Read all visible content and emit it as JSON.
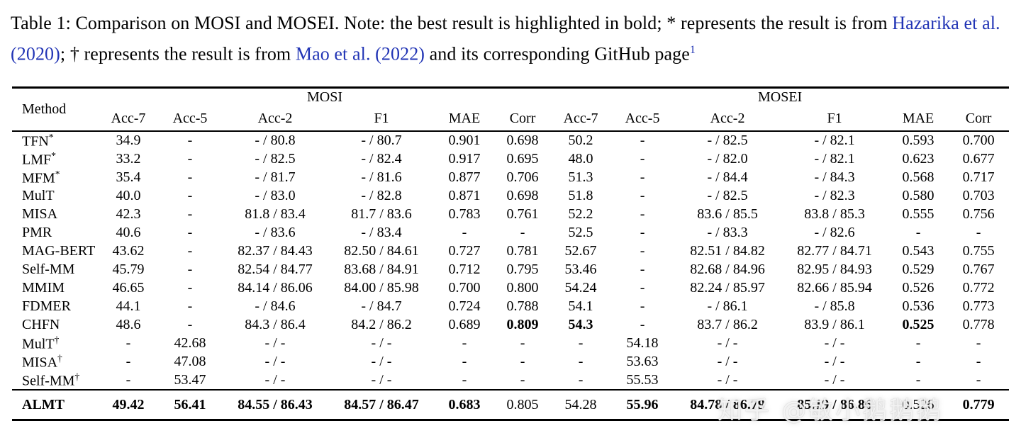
{
  "caption": {
    "part1": "Table 1: Comparison on MOSI and MOSEI. Note: the best result is highlighted in bold; * represents the result is from ",
    "link1": "Hazarika et al. (2020)",
    "part2": "; † represents the result is from ",
    "link2": "Mao et al. (2022)",
    "part3": " and its corresponding GitHub page",
    "footnote": "1",
    "link_color": "#2134b5"
  },
  "table": {
    "method_header": "Method",
    "group1": "MOSI",
    "group2": "MOSEI",
    "metric_headers": [
      "Acc-7",
      "Acc-5",
      "Acc-2",
      "F1",
      "MAE",
      "Corr"
    ],
    "rows": [
      {
        "method": "TFN",
        "sup": "*",
        "cells": [
          "34.9",
          "-",
          "- / 80.8",
          "- / 80.7",
          "0.901",
          "0.698",
          "50.2",
          "-",
          "- / 82.5",
          "- / 82.1",
          "0.593",
          "0.700"
        ],
        "bold_cells": []
      },
      {
        "method": "LMF",
        "sup": "*",
        "cells": [
          "33.2",
          "-",
          "- / 82.5",
          "- / 82.4",
          "0.917",
          "0.695",
          "48.0",
          "-",
          "- / 82.0",
          "- / 82.1",
          "0.623",
          "0.677"
        ],
        "bold_cells": []
      },
      {
        "method": "MFM",
        "sup": "*",
        "cells": [
          "35.4",
          "-",
          "- / 81.7",
          "- / 81.6",
          "0.877",
          "0.706",
          "51.3",
          "-",
          "- / 84.4",
          "- / 84.3",
          "0.568",
          "0.717"
        ],
        "bold_cells": []
      },
      {
        "method": "MulT",
        "sup": "",
        "cells": [
          "40.0",
          "-",
          "- / 83.0",
          "- / 82.8",
          "0.871",
          "0.698",
          "51.8",
          "-",
          "- / 82.5",
          "- / 82.3",
          "0.580",
          "0.703"
        ],
        "bold_cells": []
      },
      {
        "method": "MISA",
        "sup": "",
        "cells": [
          "42.3",
          "-",
          "81.8 / 83.4",
          "81.7 / 83.6",
          "0.783",
          "0.761",
          "52.2",
          "-",
          "83.6 / 85.5",
          "83.8 / 85.3",
          "0.555",
          "0.756"
        ],
        "bold_cells": []
      },
      {
        "method": "PMR",
        "sup": "",
        "cells": [
          "40.6",
          "-",
          "- / 83.6",
          "- / 83.4",
          "-",
          "-",
          "52.5",
          "-",
          "- / 83.3",
          "- / 82.6",
          "-",
          "-"
        ],
        "bold_cells": []
      },
      {
        "method": "MAG-BERT",
        "sup": "",
        "cells": [
          "43.62",
          "-",
          "82.37 / 84.43",
          "82.50 / 84.61",
          "0.727",
          "0.781",
          "52.67",
          "-",
          "82.51 / 84.82",
          "82.77 / 84.71",
          "0.543",
          "0.755"
        ],
        "bold_cells": []
      },
      {
        "method": "Self-MM",
        "sup": "",
        "cells": [
          "45.79",
          "-",
          "82.54 / 84.77",
          "83.68 / 84.91",
          "0.712",
          "0.795",
          "53.46",
          "-",
          "82.68 / 84.96",
          "82.95 / 84.93",
          "0.529",
          "0.767"
        ],
        "bold_cells": []
      },
      {
        "method": "MMIM",
        "sup": "",
        "cells": [
          "46.65",
          "-",
          "84.14 / 86.06",
          "84.00 / 85.98",
          "0.700",
          "0.800",
          "54.24",
          "-",
          "82.24 / 85.97",
          "82.66 / 85.94",
          "0.526",
          "0.772"
        ],
        "bold_cells": []
      },
      {
        "method": "FDMER",
        "sup": "",
        "cells": [
          "44.1",
          "-",
          "- / 84.6",
          "- / 84.7",
          "0.724",
          "0.788",
          "54.1",
          "-",
          "- / 86.1",
          "- / 85.8",
          "0.536",
          "0.773"
        ],
        "bold_cells": []
      },
      {
        "method": "CHFN",
        "sup": "",
        "cells": [
          "48.6",
          "-",
          "84.3 / 86.4",
          "84.2 / 86.2",
          "0.689",
          "0.809",
          "54.3",
          "-",
          "83.7 / 86.2",
          "83.9 / 86.1",
          "0.525",
          "0.778"
        ],
        "bold_cells": [
          5,
          6,
          10
        ]
      },
      {
        "method": "MulT",
        "sup": "†",
        "cells": [
          "-",
          "42.68",
          "- / -",
          "- / -",
          "-",
          "-",
          "-",
          "54.18",
          "- / -",
          "- / -",
          "-",
          "-"
        ],
        "bold_cells": []
      },
      {
        "method": "MISA",
        "sup": "†",
        "cells": [
          "-",
          "47.08",
          "- / -",
          "- / -",
          "-",
          "-",
          "-",
          "53.63",
          "- / -",
          "- / -",
          "-",
          "-"
        ],
        "bold_cells": []
      },
      {
        "method": "Self-MM",
        "sup": "†",
        "cells": [
          "-",
          "53.47",
          "- / -",
          "- / -",
          "-",
          "-",
          "-",
          "55.53",
          "- / -",
          "- / -",
          "-",
          "-"
        ],
        "bold_cells": []
      }
    ],
    "footer_row": {
      "method": "ALMT",
      "sup": "",
      "method_bold": true,
      "cells": [
        "49.42",
        "56.41",
        "84.55 / 86.43",
        "84.57 / 86.47",
        "0.683",
        "0.805",
        "54.28",
        "55.96",
        "84.78 / 86.79",
        "85.19 / 86.86",
        "0.526",
        "0.779"
      ],
      "bold_cells": [
        0,
        1,
        2,
        3,
        4,
        7,
        8,
        9,
        11
      ]
    }
  },
  "watermark": "知乎 @敏小鹅鹅鹅"
}
